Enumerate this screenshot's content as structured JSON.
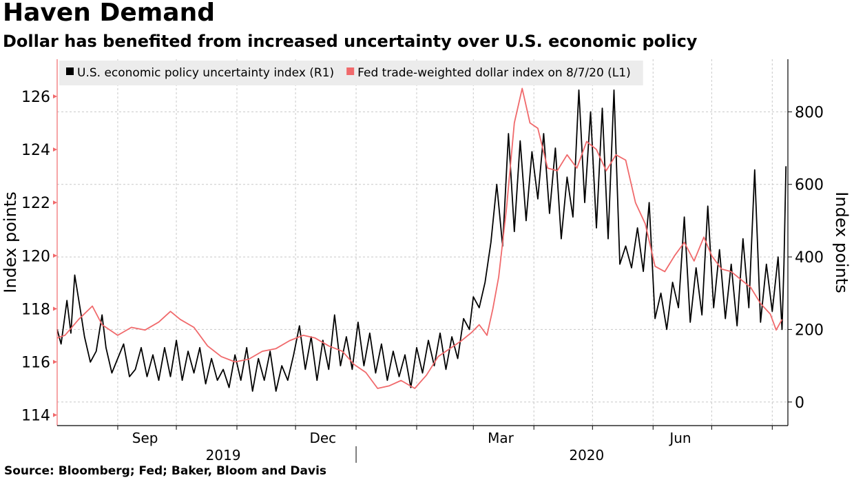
{
  "header": {
    "title": "Haven Demand",
    "subtitle": "Dollar has benefited from increased uncertainty over U.S. economic policy"
  },
  "footer": {
    "source": "Source: Bloomberg; Fed; Baker, Bloom and Davis"
  },
  "colors": {
    "uncertainty": "#000000",
    "dollar": "#f0696b",
    "grid": "#c8c8c8",
    "legend_bg": "#ececec"
  },
  "chart_data": {
    "type": "line",
    "x_axis": {
      "month_labels": [
        {
          "label": "Sep",
          "date": "2019-09-15"
        },
        {
          "label": "Dec",
          "date": "2019-12-15"
        },
        {
          "label": "Mar",
          "date": "2020-03-15"
        },
        {
          "label": "Jun",
          "date": "2020-06-15"
        }
      ],
      "month_boundaries": [
        "2019-09-01",
        "2019-10-01",
        "2019-11-01",
        "2019-12-01",
        "2020-01-01",
        "2020-02-01",
        "2020-03-01",
        "2020-04-01",
        "2020-05-01",
        "2020-06-01",
        "2020-07-01",
        "2020-08-01"
      ],
      "year_labels": [
        {
          "label": "2019",
          "date": "2019-10-25"
        },
        {
          "label": "2020",
          "date": "2020-04-28"
        }
      ],
      "year_separator": "2020-01-01",
      "range": [
        "2019-08-01",
        "2020-08-09"
      ]
    },
    "left_axis": {
      "label": "Index points",
      "range": [
        113.6,
        127.4
      ],
      "ticks": [
        114,
        116,
        118,
        120,
        122,
        124,
        126
      ]
    },
    "right_axis": {
      "label": "Index points",
      "range": [
        -65,
        945
      ],
      "ticks": [
        0,
        200,
        400,
        600,
        800
      ]
    },
    "legend": {
      "position": "top-left",
      "items": [
        {
          "label": "U.S. economic policy uncertainty index (R1)",
          "color": "#000000"
        },
        {
          "label": "Fed trade-weighted dollar index on 8/7/20 (L1)",
          "color": "#f0696b"
        }
      ]
    },
    "series": [
      {
        "name": "U.S. economic policy uncertainty index (R1)",
        "axis": "right",
        "color": "#000000",
        "points": [
          [
            "2019-08-01",
            200
          ],
          [
            "2019-08-03",
            160
          ],
          [
            "2019-08-06",
            280
          ],
          [
            "2019-08-08",
            190
          ],
          [
            "2019-08-10",
            350
          ],
          [
            "2019-08-13",
            250
          ],
          [
            "2019-08-15",
            180
          ],
          [
            "2019-08-18",
            110
          ],
          [
            "2019-08-21",
            140
          ],
          [
            "2019-08-24",
            240
          ],
          [
            "2019-08-26",
            150
          ],
          [
            "2019-08-29",
            80
          ],
          [
            "2019-09-01",
            120
          ],
          [
            "2019-09-04",
            160
          ],
          [
            "2019-09-07",
            70
          ],
          [
            "2019-09-10",
            90
          ],
          [
            "2019-09-13",
            150
          ],
          [
            "2019-09-16",
            70
          ],
          [
            "2019-09-19",
            130
          ],
          [
            "2019-09-22",
            60
          ],
          [
            "2019-09-25",
            150
          ],
          [
            "2019-09-28",
            70
          ],
          [
            "2019-10-01",
            170
          ],
          [
            "2019-10-04",
            60
          ],
          [
            "2019-10-07",
            140
          ],
          [
            "2019-10-10",
            80
          ],
          [
            "2019-10-13",
            150
          ],
          [
            "2019-10-16",
            50
          ],
          [
            "2019-10-19",
            120
          ],
          [
            "2019-10-22",
            60
          ],
          [
            "2019-10-25",
            90
          ],
          [
            "2019-10-28",
            40
          ],
          [
            "2019-10-31",
            130
          ],
          [
            "2019-11-03",
            60
          ],
          [
            "2019-11-06",
            150
          ],
          [
            "2019-11-09",
            30
          ],
          [
            "2019-11-12",
            120
          ],
          [
            "2019-11-15",
            60
          ],
          [
            "2019-11-18",
            140
          ],
          [
            "2019-11-21",
            30
          ],
          [
            "2019-11-24",
            100
          ],
          [
            "2019-11-27",
            60
          ],
          [
            "2019-11-30",
            130
          ],
          [
            "2019-12-03",
            210
          ],
          [
            "2019-12-06",
            90
          ],
          [
            "2019-12-09",
            180
          ],
          [
            "2019-12-12",
            60
          ],
          [
            "2019-12-15",
            170
          ],
          [
            "2019-12-18",
            90
          ],
          [
            "2019-12-21",
            240
          ],
          [
            "2019-12-24",
            100
          ],
          [
            "2019-12-27",
            180
          ],
          [
            "2019-12-30",
            90
          ],
          [
            "2020-01-02",
            220
          ],
          [
            "2020-01-05",
            100
          ],
          [
            "2020-01-08",
            190
          ],
          [
            "2020-01-11",
            80
          ],
          [
            "2020-01-14",
            160
          ],
          [
            "2020-01-17",
            60
          ],
          [
            "2020-01-20",
            140
          ],
          [
            "2020-01-23",
            70
          ],
          [
            "2020-01-26",
            130
          ],
          [
            "2020-01-29",
            40
          ],
          [
            "2020-02-01",
            150
          ],
          [
            "2020-02-04",
            80
          ],
          [
            "2020-02-07",
            170
          ],
          [
            "2020-02-10",
            100
          ],
          [
            "2020-02-13",
            190
          ],
          [
            "2020-02-16",
            90
          ],
          [
            "2020-02-19",
            180
          ],
          [
            "2020-02-22",
            120
          ],
          [
            "2020-02-25",
            230
          ],
          [
            "2020-02-28",
            200
          ],
          [
            "2020-03-01",
            290
          ],
          [
            "2020-03-04",
            260
          ],
          [
            "2020-03-07",
            330
          ],
          [
            "2020-03-10",
            440
          ],
          [
            "2020-03-13",
            600
          ],
          [
            "2020-03-16",
            430
          ],
          [
            "2020-03-19",
            740
          ],
          [
            "2020-03-22",
            470
          ],
          [
            "2020-03-25",
            720
          ],
          [
            "2020-03-28",
            500
          ],
          [
            "2020-03-31",
            690
          ],
          [
            "2020-04-03",
            560
          ],
          [
            "2020-04-06",
            740
          ],
          [
            "2020-04-09",
            520
          ],
          [
            "2020-04-12",
            700
          ],
          [
            "2020-04-15",
            450
          ],
          [
            "2020-04-18",
            620
          ],
          [
            "2020-04-21",
            510
          ],
          [
            "2020-04-24",
            860
          ],
          [
            "2020-04-27",
            550
          ],
          [
            "2020-04-30",
            800
          ],
          [
            "2020-05-03",
            480
          ],
          [
            "2020-05-06",
            810
          ],
          [
            "2020-05-09",
            450
          ],
          [
            "2020-05-12",
            860
          ],
          [
            "2020-05-15",
            380
          ],
          [
            "2020-05-18",
            430
          ],
          [
            "2020-05-21",
            370
          ],
          [
            "2020-05-24",
            480
          ],
          [
            "2020-05-27",
            360
          ],
          [
            "2020-05-30",
            550
          ],
          [
            "2020-06-02",
            230
          ],
          [
            "2020-06-05",
            300
          ],
          [
            "2020-06-08",
            200
          ],
          [
            "2020-06-11",
            330
          ],
          [
            "2020-06-14",
            260
          ],
          [
            "2020-06-17",
            510
          ],
          [
            "2020-06-20",
            220
          ],
          [
            "2020-06-23",
            370
          ],
          [
            "2020-06-26",
            240
          ],
          [
            "2020-06-29",
            540
          ],
          [
            "2020-07-02",
            260
          ],
          [
            "2020-07-05",
            420
          ],
          [
            "2020-07-08",
            230
          ],
          [
            "2020-07-11",
            380
          ],
          [
            "2020-07-14",
            210
          ],
          [
            "2020-07-17",
            450
          ],
          [
            "2020-07-20",
            260
          ],
          [
            "2020-07-23",
            640
          ],
          [
            "2020-07-26",
            220
          ],
          [
            "2020-07-29",
            380
          ],
          [
            "2020-08-01",
            250
          ],
          [
            "2020-08-04",
            400
          ],
          [
            "2020-08-06",
            200
          ],
          [
            "2020-08-07",
            380
          ],
          [
            "2020-08-08",
            650
          ]
        ]
      },
      {
        "name": "Fed trade-weighted dollar index on 8/7/20 (L1)",
        "axis": "left",
        "color": "#f0696b",
        "points": [
          [
            "2019-08-01",
            116.9
          ],
          [
            "2019-08-05",
            117.0
          ],
          [
            "2019-08-12",
            117.6
          ],
          [
            "2019-08-19",
            118.1
          ],
          [
            "2019-08-24",
            117.4
          ],
          [
            "2019-09-01",
            117.0
          ],
          [
            "2019-09-08",
            117.3
          ],
          [
            "2019-09-15",
            117.2
          ],
          [
            "2019-09-22",
            117.5
          ],
          [
            "2019-09-28",
            117.9
          ],
          [
            "2019-10-03",
            117.6
          ],
          [
            "2019-10-10",
            117.3
          ],
          [
            "2019-10-17",
            116.6
          ],
          [
            "2019-10-24",
            116.2
          ],
          [
            "2019-10-31",
            116.0
          ],
          [
            "2019-11-07",
            116.1
          ],
          [
            "2019-11-14",
            116.4
          ],
          [
            "2019-11-21",
            116.5
          ],
          [
            "2019-11-28",
            116.8
          ],
          [
            "2019-12-05",
            117.0
          ],
          [
            "2019-12-11",
            116.9
          ],
          [
            "2019-12-18",
            116.6
          ],
          [
            "2019-12-25",
            116.4
          ],
          [
            "2019-12-31",
            115.9
          ],
          [
            "2020-01-06",
            115.6
          ],
          [
            "2020-01-12",
            115.0
          ],
          [
            "2020-01-18",
            115.1
          ],
          [
            "2020-01-24",
            115.3
          ],
          [
            "2020-01-31",
            115.0
          ],
          [
            "2020-02-06",
            115.5
          ],
          [
            "2020-02-12",
            116.2
          ],
          [
            "2020-02-18",
            116.5
          ],
          [
            "2020-02-24",
            116.8
          ],
          [
            "2020-02-29",
            117.1
          ],
          [
            "2020-03-04",
            117.4
          ],
          [
            "2020-03-08",
            117.0
          ],
          [
            "2020-03-11",
            118.0
          ],
          [
            "2020-03-14",
            119.2
          ],
          [
            "2020-03-18",
            121.8
          ],
          [
            "2020-03-22",
            125.0
          ],
          [
            "2020-03-26",
            126.3
          ],
          [
            "2020-03-30",
            125.0
          ],
          [
            "2020-04-03",
            124.8
          ],
          [
            "2020-04-08",
            123.3
          ],
          [
            "2020-04-13",
            123.2
          ],
          [
            "2020-04-18",
            123.8
          ],
          [
            "2020-04-23",
            123.3
          ],
          [
            "2020-04-28",
            124.3
          ],
          [
            "2020-05-03",
            124.0
          ],
          [
            "2020-05-08",
            123.2
          ],
          [
            "2020-05-13",
            123.8
          ],
          [
            "2020-05-18",
            123.6
          ],
          [
            "2020-05-23",
            122.0
          ],
          [
            "2020-05-28",
            121.2
          ],
          [
            "2020-06-02",
            119.6
          ],
          [
            "2020-06-07",
            119.4
          ],
          [
            "2020-06-12",
            120.0
          ],
          [
            "2020-06-17",
            120.5
          ],
          [
            "2020-06-22",
            119.8
          ],
          [
            "2020-06-27",
            120.7
          ],
          [
            "2020-07-01",
            120.0
          ],
          [
            "2020-07-06",
            119.5
          ],
          [
            "2020-07-11",
            119.4
          ],
          [
            "2020-07-16",
            119.1
          ],
          [
            "2020-07-21",
            118.8
          ],
          [
            "2020-07-26",
            118.2
          ],
          [
            "2020-07-31",
            117.8
          ],
          [
            "2020-08-03",
            117.2
          ],
          [
            "2020-08-06",
            117.6
          ]
        ]
      }
    ]
  }
}
